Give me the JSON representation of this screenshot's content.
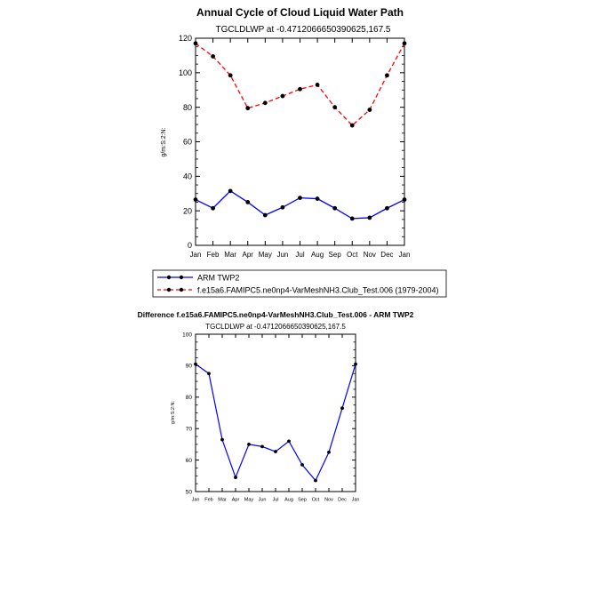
{
  "chart_data": [
    {
      "type": "line",
      "title": "Annual Cycle of Cloud Liquid Water Path",
      "subtitle": "TGCLDLWP at -0.4712066650390625,167.5",
      "xlabel": "",
      "ylabel": "g/m:S:2:N:",
      "categories": [
        "Jan",
        "Feb",
        "Mar",
        "Apr",
        "May",
        "Jun",
        "Jul",
        "Aug",
        "Sep",
        "Oct",
        "Nov",
        "Dec",
        "Jan"
      ],
      "ylim": [
        0,
        120
      ],
      "yticks": [
        0,
        20,
        40,
        60,
        80,
        100,
        120
      ],
      "series": [
        {
          "name": "ARM TWP2",
          "color": "#0000ff",
          "dash": "solid",
          "values": [
            26.5,
            21.5,
            31.5,
            25,
            17.5,
            22,
            27.5,
            27,
            21.5,
            15.5,
            16,
            21.5,
            26.5
          ]
        },
        {
          "name": "f.e15a6.FAMIPC5.ne0np4-VarMeshNH3.Club_Test.006 (1979-2004)",
          "color": "#ff0000",
          "dash": "dashed",
          "values": [
            117,
            109.5,
            98.5,
            79.5,
            82.5,
            86.5,
            90.5,
            93,
            80,
            69.5,
            78.5,
            98.5,
            117
          ]
        }
      ]
    },
    {
      "type": "line",
      "title": "Difference f.e15a6.FAMIPC5.ne0np4-VarMeshNH3.Club_Test.006 - ARM TWP2",
      "subtitle": "TGCLDLWP at -0.4712066650390625,167.5",
      "xlabel": "",
      "ylabel": "g/m:S:2:N:",
      "categories": [
        "Jan",
        "Feb",
        "Mar",
        "Apr",
        "May",
        "Jun",
        "Jul",
        "Aug",
        "Sep",
        "Oct",
        "Nov",
        "Dec",
        "Jan"
      ],
      "ylim": [
        50,
        100
      ],
      "yticks": [
        50,
        60,
        70,
        80,
        90,
        100
      ],
      "series": [
        {
          "name": "Difference",
          "color": "#0000ff",
          "dash": "solid",
          "values": [
            90.5,
            87.5,
            66.5,
            54.5,
            65,
            64.3,
            62.7,
            66,
            58.5,
            53.5,
            62.5,
            76.5,
            90.5
          ]
        }
      ]
    }
  ]
}
